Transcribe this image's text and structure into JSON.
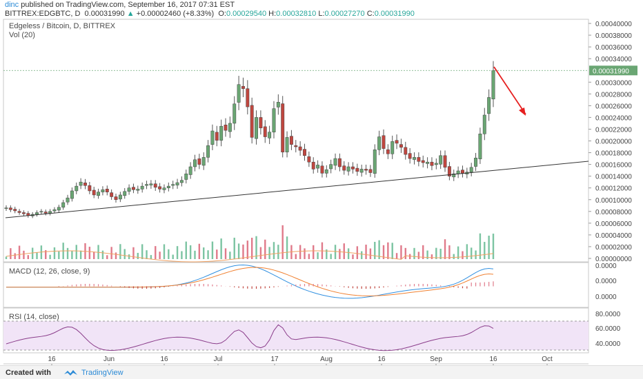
{
  "header": {
    "publisher": "dinc",
    "published_text": " published on TradingView.com, September 16, 2017 07:31 EST",
    "symbol": "BITTREX:EDGBTC, D",
    "price": "0.00031990",
    "change": "+0.00002460 (+8.33%)",
    "o_label": "O:",
    "o": "0.00029540",
    "h_label": "H:",
    "h": "0.00032810",
    "l_label": "L:",
    "l": "0.00027270",
    "c_label": "C:",
    "c": "0.00031990"
  },
  "main_panel": {
    "title": "Edgeless / Bitcoin, D, BITTREX",
    "vol_label": "Vol (20)",
    "last_price_tag": "0.00031990"
  },
  "macd_panel": {
    "title": "MACD (12, 26, close, 9)",
    "ticks": [
      "0.0000",
      "0.0000",
      "0.0000"
    ]
  },
  "rsi_panel": {
    "title": "RSI (14, close)",
    "ticks": [
      "80.0000",
      "60.0000",
      "40.0000"
    ]
  },
  "price_axis": {
    "ticks": [
      "0.00040000",
      "0.00038000",
      "0.00036000",
      "0.00034000",
      "0.00030000",
      "0.00028000",
      "0.00026000",
      "0.00024000",
      "0.00022000",
      "0.00020000",
      "0.00018000",
      "0.00016000",
      "0.00014000",
      "0.00012000",
      "0.00010000",
      "0.00008000",
      "0.00006000",
      "0.00004000",
      "0.00002000",
      "0.00000000"
    ]
  },
  "time_axis": {
    "labels": [
      "16",
      "Jun",
      "16",
      "Jul",
      "17",
      "Aug",
      "16",
      "Sep",
      "16",
      "Oct"
    ]
  },
  "colors": {
    "up": "#6aa673",
    "down": "#c0463f",
    "vol_up": "#7cc4a2",
    "vol_down": "#e07a8a",
    "macd": "#2f8fe0",
    "signal": "#f08030",
    "rsi": "#8a3c8a",
    "rsi_band": "#f1e4f7",
    "arrow": "#e62020",
    "vol_ma": "#f0a060"
  },
  "chart_data": {
    "type": "candlestick",
    "period": "D",
    "closes": [
      8.6e-05,
      8.3e-05,
      8.1e-05,
      7.8e-05,
      7.6e-05,
      7.3e-05,
      7.5e-05,
      7.8e-05,
      8e-05,
      7.7e-05,
      8e-05,
      8.3e-05,
      8.7e-05,
      9.5e-05,
      0.000103,
      0.000115,
      0.000123,
      0.00013,
      0.000124,
      0.000115,
      0.000108,
      0.000113,
      0.000117,
      0.000113,
      0.000105,
      0.0001,
      0.000108,
      0.000114,
      0.00012,
      0.000117,
      0.000118,
      0.000123,
      0.000126,
      0.000127,
      0.000121,
      0.000118,
      0.00012,
      0.000123,
      0.000126,
      0.000129,
      0.000133,
      0.000144,
      0.000156,
      0.000168,
      0.00016,
      0.000172,
      0.000192,
      0.000217,
      0.000201,
      0.000225,
      0.000218,
      0.00023,
      0.000263,
      0.000296,
      0.000289,
      0.000258,
      0.000206,
      0.00024,
      0.000222,
      0.000207,
      0.000215,
      0.000255,
      0.000266,
      0.000181,
      0.000206,
      0.000194,
      0.00019,
      0.000184,
      0.000175,
      0.000164,
      0.000152,
      0.000159,
      0.000145,
      0.000151,
      0.00016,
      0.00017,
      0.000156,
      0.00015,
      0.000156,
      0.000152,
      0.000148,
      0.000152,
      0.00015,
      0.000146,
      0.000185,
      0.000207,
      0.000187,
      0.000178,
      0.000199,
      0.000196,
      0.000189,
      0.000177,
      0.00017,
      0.000172,
      0.000165,
      0.000163,
      0.000164,
      0.000158,
      0.000162,
      0.000175,
      0.000155,
      0.00014,
      0.000144,
      0.000149,
      0.000145,
      0.000147,
      0.000155,
      0.000171,
      0.000212,
      0.000244,
      0.000274,
      0.0003199
    ],
    "ylim": [
      0,
      0.0004
    ],
    "last_price": 0.0003199,
    "annotations": [
      "ascending trendline",
      "red arrow projecting decline"
    ]
  }
}
